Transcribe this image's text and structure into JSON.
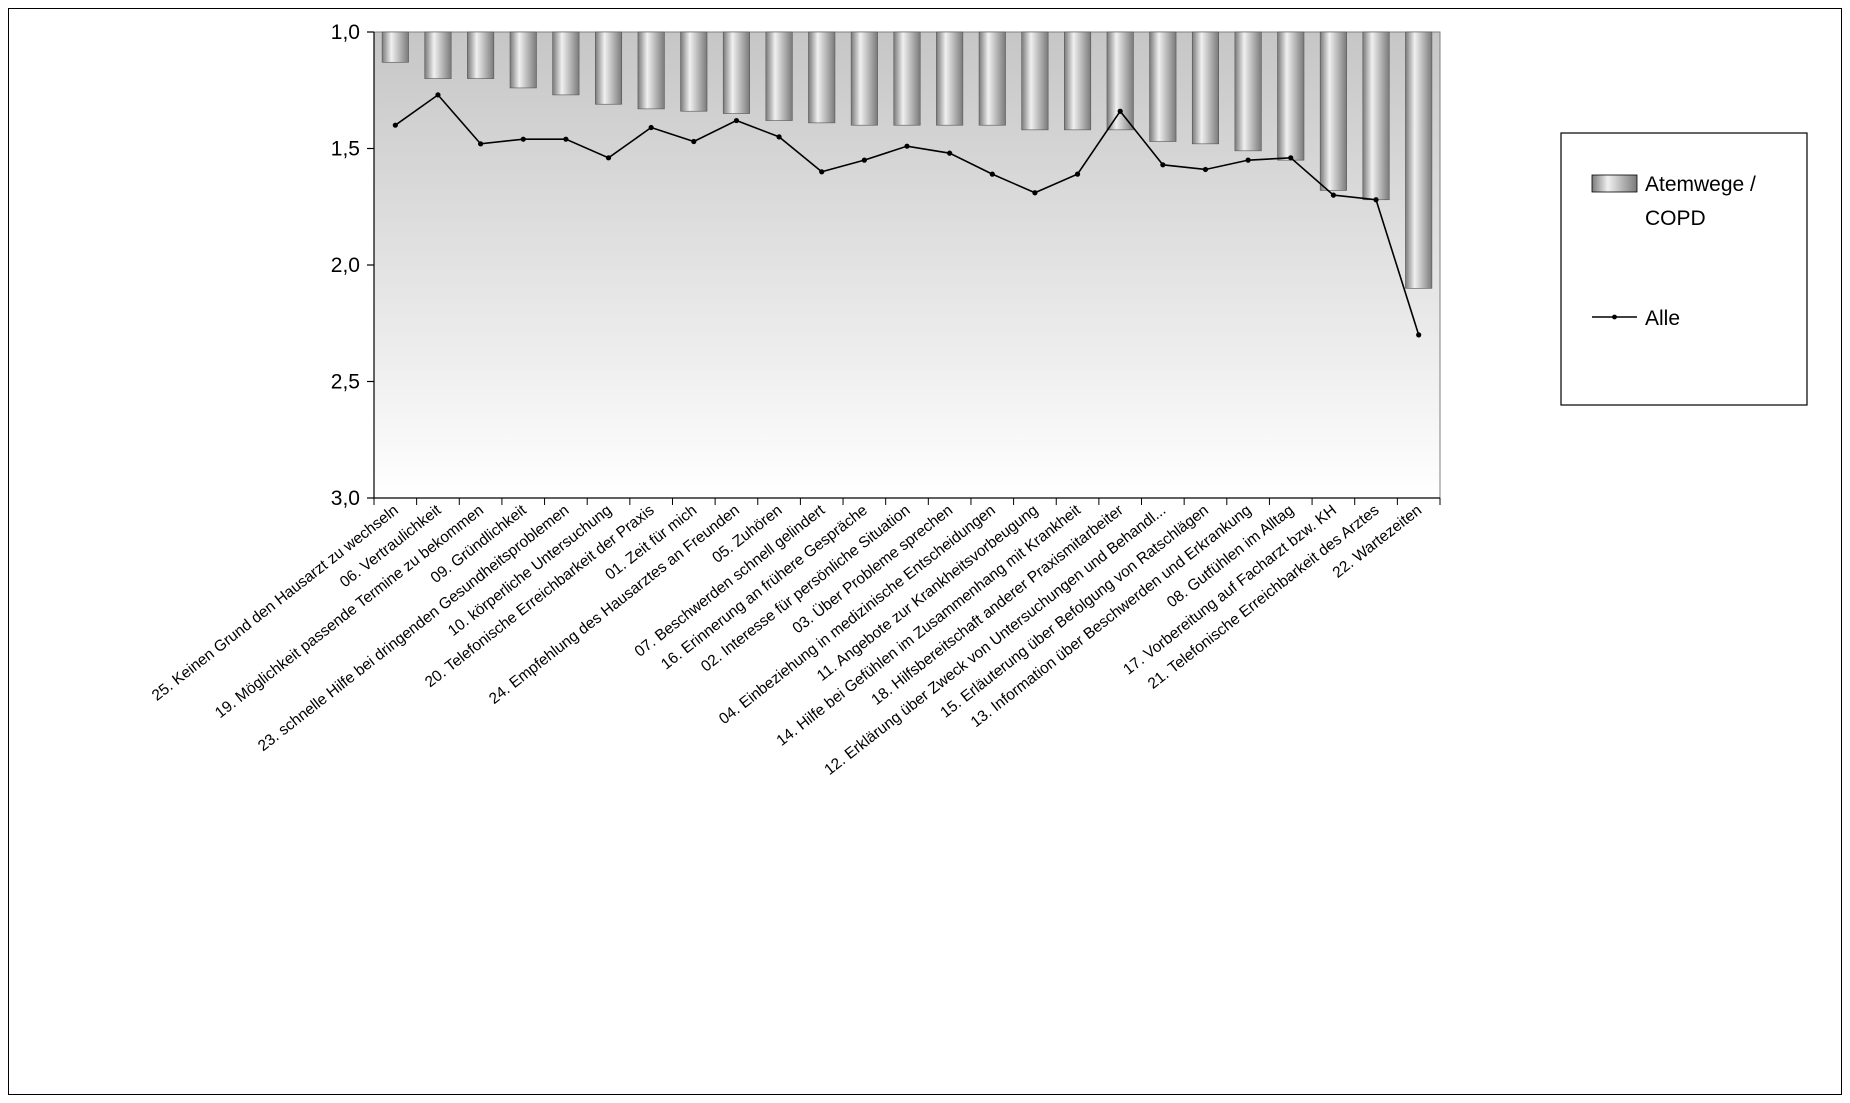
{
  "chart_data": {
    "type": "bar",
    "categories": [
      "25. Keinen Grund den Hausarzt zu wechseln",
      "06. Vertraulichkeit",
      "19. Möglichkeit passende Termine zu bekommen",
      "09. Gründlichkeit",
      "23. schnelle Hilfe bei dringenden Gesundheitsproblemen",
      "10. körperliche Untersuchung",
      "20. Telefonische Erreichbarkeit der Praxis",
      "01. Zeit für mich",
      "24. Empfehlung des Hausarztes an Freunden",
      "05. Zuhören",
      "07. Beschwerden schnell gelindert",
      "16. Erinnerung an frühere Gespräche",
      "02. Interesse für persönliche Situation",
      "03. Über Probleme sprechen",
      "04. Einbeziehung in medizinische Entscheidungen",
      "11. Angebote zur Krankheitsvorbeugung",
      "14. Hilfe bei Gefühlen im Zusammenhang mit Krankheit",
      "18. Hilfsbereitschaft anderer Praxismitarbeiter",
      "12. Erklärung über Zweck von Untersuchungen und Behandl...",
      "15. Erläuterung über Befolgung von Ratschlägen",
      "13. Information über Beschwerden und Erkrankung",
      "08. Gutfühlen im Alltag",
      "17. Vorbereitung auf Facharzt bzw. KH",
      "21. Telefonische Erreichbarkeit des Arztes",
      "22. Wartezeiten"
    ],
    "series": [
      {
        "name": "Atemwege / COPD",
        "kind": "bar",
        "values": [
          1.13,
          1.2,
          1.2,
          1.24,
          1.27,
          1.31,
          1.33,
          1.34,
          1.35,
          1.38,
          1.39,
          1.4,
          1.4,
          1.4,
          1.4,
          1.42,
          1.42,
          1.42,
          1.47,
          1.48,
          1.51,
          1.55,
          1.68,
          1.72,
          2.1
        ]
      },
      {
        "name": "Alle",
        "kind": "line",
        "values": [
          1.4,
          1.27,
          1.48,
          1.46,
          1.46,
          1.54,
          1.41,
          1.47,
          1.38,
          1.45,
          1.6,
          1.55,
          1.49,
          1.52,
          1.61,
          1.69,
          1.61,
          1.34,
          1.57,
          1.59,
          1.55,
          1.54,
          1.7,
          1.72,
          2.3
        ]
      }
    ],
    "yticks": [
      "1,0",
      "1,5",
      "2,0",
      "2,5",
      "3,0"
    ],
    "ylim": [
      1.0,
      3.0
    ],
    "y_reversed": true,
    "title": "",
    "xlabel": "",
    "ylabel": "",
    "legend_position": "right",
    "legend": [
      "Atemwege / COPD",
      "Alle"
    ],
    "legend_labels": {
      "bar_line1": "Atemwege /",
      "bar_line2": "COPD",
      "line": "Alle"
    },
    "colors": {
      "bar_light": "#f0f0f0",
      "bar_dark": "#7a7a7a",
      "plot_top": "#c6c6c6",
      "plot_bottom": "#ffffff",
      "line": "#000000"
    }
  }
}
